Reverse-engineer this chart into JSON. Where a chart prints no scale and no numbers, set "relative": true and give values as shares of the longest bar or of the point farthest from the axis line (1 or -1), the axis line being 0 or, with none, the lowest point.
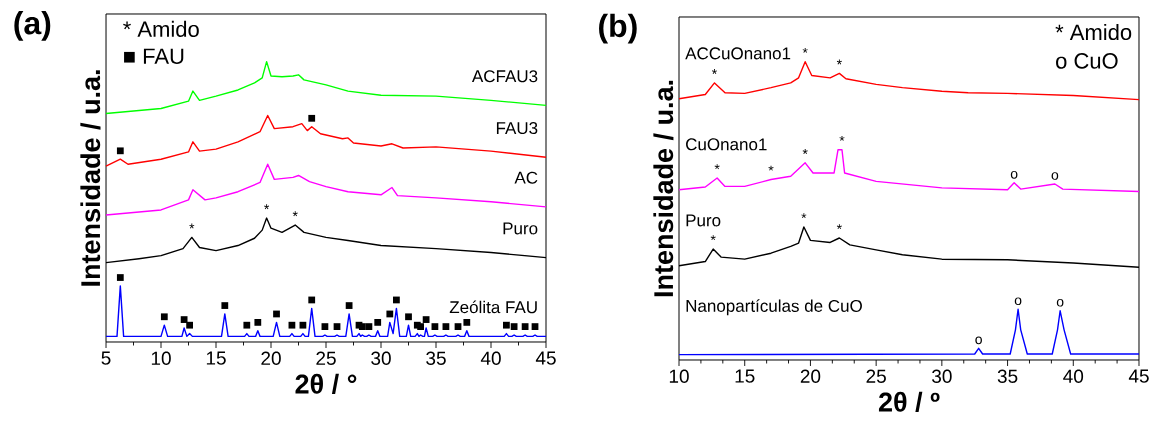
{
  "chart_data": [
    {
      "type": "line",
      "title": "(a)",
      "xlabel": "2θ / °",
      "ylabel": "Intensidade / u.a.",
      "relative": true,
      "xlim": [
        5,
        45
      ],
      "xticks": [
        5,
        10,
        15,
        20,
        25,
        30,
        35,
        40,
        45
      ],
      "series": [
        {
          "name": "ACFAU3",
          "color": "#00ff00",
          "x": [
            5,
            10,
            12.5,
            12.9,
            13.5,
            15,
            17,
            18.5,
            19.2,
            19.6,
            20,
            21,
            22,
            22.5,
            23,
            25,
            27,
            30,
            35,
            40,
            45
          ],
          "values": [
            0.815,
            0.833,
            0.859,
            0.895,
            0.862,
            0.877,
            0.899,
            0.924,
            0.942,
            1.0,
            0.949,
            0.946,
            0.949,
            0.953,
            0.935,
            0.917,
            0.895,
            0.88,
            0.877,
            0.862,
            0.844
          ]
        },
        {
          "name": "FAU3",
          "color": "#ff0000",
          "x": [
            5,
            6.3,
            7,
            10,
            12.5,
            12.9,
            13.5,
            15,
            17,
            19,
            19.7,
            20.3,
            22,
            22.8,
            23.3,
            23.7,
            24.5,
            26.5,
            27,
            27.5,
            30,
            31,
            32,
            35,
            40,
            45
          ],
          "values": [
            0.627,
            0.652,
            0.634,
            0.652,
            0.678,
            0.714,
            0.681,
            0.688,
            0.714,
            0.75,
            0.808,
            0.761,
            0.768,
            0.779,
            0.754,
            0.768,
            0.743,
            0.725,
            0.728,
            0.71,
            0.699,
            0.707,
            0.692,
            0.696,
            0.681,
            0.659
          ]
        },
        {
          "name": "AC",
          "color": "#ff00ff",
          "x": [
            5,
            10,
            12.5,
            12.9,
            14,
            15,
            17,
            19,
            19.7,
            20.3,
            22,
            22.5,
            23.5,
            25,
            27,
            30,
            31,
            31.5,
            35,
            40,
            45
          ],
          "values": [
            0.453,
            0.471,
            0.507,
            0.543,
            0.507,
            0.514,
            0.536,
            0.569,
            0.634,
            0.58,
            0.587,
            0.594,
            0.572,
            0.554,
            0.536,
            0.525,
            0.551,
            0.522,
            0.514,
            0.5,
            0.482
          ]
        },
        {
          "name": "Puro",
          "color": "#000000",
          "x": [
            5,
            8,
            10,
            12,
            12.8,
            13.5,
            15,
            17,
            18.5,
            19.2,
            19.6,
            20,
            21,
            22.2,
            23,
            25,
            27,
            30,
            35,
            40,
            45
          ],
          "values": [
            0.283,
            0.297,
            0.308,
            0.333,
            0.373,
            0.337,
            0.326,
            0.344,
            0.37,
            0.399,
            0.442,
            0.406,
            0.391,
            0.417,
            0.391,
            0.373,
            0.362,
            0.344,
            0.333,
            0.319,
            0.301
          ]
        },
        {
          "name": "Zeólita FAU",
          "color": "#0000ff",
          "x": [
            5,
            6.0,
            6.3,
            6.6,
            10.0,
            10.3,
            10.6,
            11.9,
            12.1,
            12.35,
            12.6,
            12.85,
            15.5,
            15.8,
            16.1,
            17.6,
            17.8,
            18.0,
            18.6,
            18.8,
            19.0,
            20.2,
            20.5,
            20.8,
            21.7,
            21.9,
            22.1,
            22.7,
            22.9,
            23.1,
            23.4,
            23.7,
            24.0,
            24.7,
            24.9,
            25.1,
            25.8,
            26.0,
            26.2,
            26.8,
            27.1,
            27.4,
            27.8,
            28.0,
            28.15,
            28.3,
            28.5,
            28.7,
            28.9,
            29.1,
            29.5,
            29.7,
            29.9,
            30.6,
            30.8,
            31.1,
            31.4,
            31.7,
            32.3,
            32.5,
            32.7,
            33.1,
            33.3,
            33.45,
            33.6,
            33.8,
            33.95,
            34.1,
            34.3,
            34.7,
            34.9,
            35.1,
            35.7,
            35.9,
            36.1,
            36.8,
            37.0,
            37.2,
            37.6,
            37.8,
            38.0,
            41.2,
            41.4,
            41.6,
            41.9,
            42.1,
            42.3,
            42.9,
            43.1,
            43.3,
            43.8,
            44.0,
            44.2,
            45
          ],
          "values": [
            0.02,
            0.02,
            0.2,
            0.02,
            0.02,
            0.06,
            0.02,
            0.02,
            0.05,
            0.02,
            0.03,
            0.02,
            0.02,
            0.1,
            0.02,
            0.02,
            0.03,
            0.02,
            0.02,
            0.04,
            0.02,
            0.02,
            0.07,
            0.02,
            0.02,
            0.03,
            0.02,
            0.02,
            0.03,
            0.02,
            0.02,
            0.12,
            0.02,
            0.02,
            0.025,
            0.02,
            0.02,
            0.025,
            0.02,
            0.02,
            0.1,
            0.02,
            0.02,
            0.03,
            0.02,
            0.025,
            0.02,
            0.02,
            0.025,
            0.02,
            0.02,
            0.04,
            0.02,
            0.02,
            0.07,
            0.03,
            0.12,
            0.02,
            0.02,
            0.06,
            0.02,
            0.02,
            0.03,
            0.02,
            0.025,
            0.02,
            0.02,
            0.05,
            0.02,
            0.02,
            0.025,
            0.02,
            0.02,
            0.025,
            0.02,
            0.02,
            0.025,
            0.02,
            0.02,
            0.04,
            0.02,
            0.02,
            0.03,
            0.02,
            0.02,
            0.025,
            0.02,
            0.02,
            0.025,
            0.02,
            0.02,
            0.025,
            0.02,
            0.02
          ]
        }
      ],
      "annotations": [
        "* Amido",
        "■ FAU",
        {
          "text": "■",
          "x": 6.3,
          "y": 0.652
        },
        {
          "text": "■",
          "x": 23.7,
          "y": 0.768
        },
        {
          "text": "*",
          "x": 12.8,
          "y": 0.373
        },
        {
          "text": "*",
          "x": 19.6,
          "y": 0.442
        },
        {
          "text": "*",
          "x": 22.2,
          "y": 0.417
        },
        {
          "text": "■",
          "x": 6.3,
          "y": 0.2
        },
        {
          "text": "■",
          "x": 10.3,
          "y": 0.06
        },
        {
          "text": "■",
          "x": 12.1,
          "y": 0.05
        },
        {
          "text": "■",
          "x": 12.6,
          "y": 0.03
        },
        {
          "text": "■",
          "x": 15.8,
          "y": 0.1
        },
        {
          "text": "■",
          "x": 17.8,
          "y": 0.03
        },
        {
          "text": "■",
          "x": 18.8,
          "y": 0.04
        },
        {
          "text": "■",
          "x": 20.5,
          "y": 0.07
        },
        {
          "text": "■",
          "x": 21.9,
          "y": 0.03
        },
        {
          "text": "■",
          "x": 22.9,
          "y": 0.03
        },
        {
          "text": "■",
          "x": 23.7,
          "y": 0.12
        },
        {
          "text": "■",
          "x": 24.9,
          "y": 0.025
        },
        {
          "text": "■",
          "x": 26.0,
          "y": 0.025
        },
        {
          "text": "■",
          "x": 27.1,
          "y": 0.1
        },
        {
          "text": "■",
          "x": 28.0,
          "y": 0.03
        },
        {
          "text": "■",
          "x": 28.3,
          "y": 0.025
        },
        {
          "text": "■",
          "x": 28.9,
          "y": 0.025
        },
        {
          "text": "■",
          "x": 29.7,
          "y": 0.04
        },
        {
          "text": "■",
          "x": 30.8,
          "y": 0.07
        },
        {
          "text": "■",
          "x": 31.4,
          "y": 0.12
        },
        {
          "text": "■",
          "x": 32.5,
          "y": 0.06
        },
        {
          "text": "■",
          "x": 33.3,
          "y": 0.03
        },
        {
          "text": "■",
          "x": 33.6,
          "y": 0.025
        },
        {
          "text": "■",
          "x": 34.1,
          "y": 0.05
        },
        {
          "text": "■",
          "x": 34.9,
          "y": 0.025
        },
        {
          "text": "■",
          "x": 35.9,
          "y": 0.025
        },
        {
          "text": "■",
          "x": 37.0,
          "y": 0.025
        },
        {
          "text": "■",
          "x": 37.8,
          "y": 0.04
        },
        {
          "text": "■",
          "x": 41.4,
          "y": 0.03
        },
        {
          "text": "■",
          "x": 42.1,
          "y": 0.025
        },
        {
          "text": "■",
          "x": 43.1,
          "y": 0.025
        },
        {
          "text": "■",
          "x": 44.0,
          "y": 0.025
        }
      ]
    },
    {
      "type": "line",
      "title": "(b)",
      "xlabel": "2θ / º",
      "ylabel": "Intensidade / u.a.",
      "relative": true,
      "xlim": [
        10,
        45
      ],
      "xticks": [
        10,
        15,
        20,
        25,
        30,
        35,
        40,
        45
      ],
      "series": [
        {
          "name": "ACCuOnano1",
          "color": "#ff0000",
          "x": [
            10,
            12,
            12.7,
            13.5,
            15,
            17,
            18.5,
            19.1,
            19.6,
            20.1,
            21.5,
            22.2,
            22.7,
            25,
            27,
            30,
            32,
            35,
            40,
            45
          ],
          "values": [
            0.876,
            0.89,
            0.929,
            0.896,
            0.894,
            0.913,
            0.929,
            0.946,
            1.0,
            0.954,
            0.946,
            0.961,
            0.943,
            0.924,
            0.913,
            0.901,
            0.896,
            0.894,
            0.887,
            0.873
          ]
        },
        {
          "name": "CuOnano1",
          "color": "#ff00ff",
          "x": [
            10,
            12,
            12.9,
            13.5,
            15,
            17,
            18.5,
            19.6,
            20.2,
            21.8,
            22.1,
            22.4,
            22.6,
            25,
            30,
            35,
            35.5,
            36,
            38.6,
            39.2,
            45
          ],
          "values": [
            0.571,
            0.58,
            0.61,
            0.582,
            0.582,
            0.605,
            0.616,
            0.661,
            0.627,
            0.627,
            0.705,
            0.705,
            0.627,
            0.599,
            0.577,
            0.571,
            0.594,
            0.573,
            0.59,
            0.573,
            0.565
          ]
        },
        {
          "name": "Puro",
          "color": "#000000",
          "x": [
            10,
            12,
            12.6,
            13.2,
            15,
            17,
            18.5,
            19.1,
            19.5,
            20,
            21.5,
            22.2,
            23,
            25,
            27,
            30,
            35,
            40,
            45
          ],
          "values": [
            0.316,
            0.33,
            0.372,
            0.345,
            0.338,
            0.358,
            0.381,
            0.392,
            0.446,
            0.401,
            0.394,
            0.409,
            0.386,
            0.369,
            0.353,
            0.338,
            0.336,
            0.325,
            0.311
          ]
        },
        {
          "name": "Nanopartículas de CuO",
          "color": "#0000ff",
          "x": [
            10,
            32.5,
            32.8,
            33.1,
            35.2,
            35.6,
            35.8,
            36.0,
            36.5,
            38.4,
            38.8,
            39.0,
            39.3,
            39.8,
            45
          ],
          "values": [
            0.018,
            0.02,
            0.039,
            0.02,
            0.02,
            0.101,
            0.17,
            0.101,
            0.02,
            0.02,
            0.101,
            0.165,
            0.101,
            0.02,
            0.02
          ]
        }
      ],
      "annotations": [
        "* Amido",
        "o CuO",
        {
          "text": "*",
          "x": 12.7,
          "y": 0.929
        },
        {
          "text": "*",
          "x": 19.6,
          "y": 1.0
        },
        {
          "text": "*",
          "x": 22.2,
          "y": 0.961
        },
        {
          "text": "*",
          "x": 12.9,
          "y": 0.61
        },
        {
          "text": "*",
          "x": 17,
          "y": 0.605
        },
        {
          "text": "*",
          "x": 19.6,
          "y": 0.661
        },
        {
          "text": "*",
          "x": 22.4,
          "y": 0.705
        },
        {
          "text": "o",
          "x": 35.5,
          "y": 0.594
        },
        {
          "text": "o",
          "x": 38.6,
          "y": 0.59
        },
        {
          "text": "*",
          "x": 12.6,
          "y": 0.372
        },
        {
          "text": "*",
          "x": 19.5,
          "y": 0.446
        },
        {
          "text": "*",
          "x": 22.2,
          "y": 0.409
        },
        {
          "text": "o",
          "x": 32.8,
          "y": 0.039
        },
        {
          "text": "o",
          "x": 35.8,
          "y": 0.17
        },
        {
          "text": "o",
          "x": 39.0,
          "y": 0.165
        }
      ]
    }
  ]
}
